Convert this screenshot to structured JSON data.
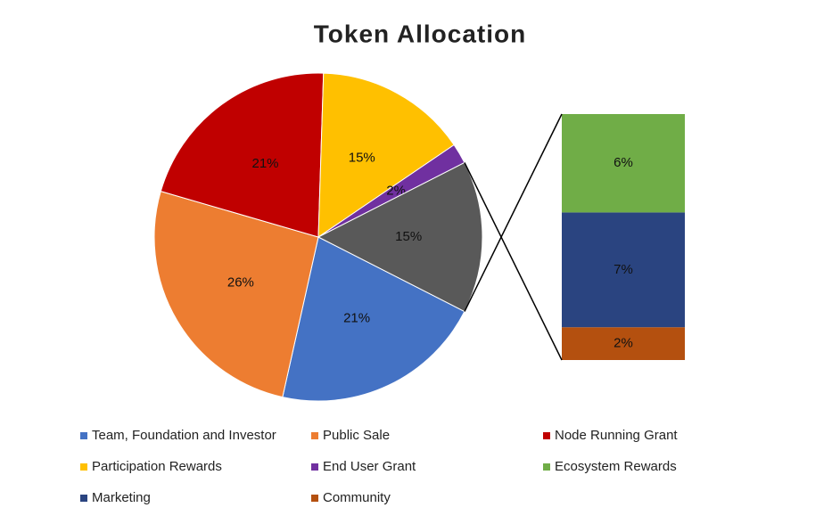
{
  "chart_data": {
    "type": "pie-of-bar",
    "title": "Token Allocation",
    "categories": [
      "Team, Foundation and Investor",
      "Public Sale",
      "Node Running Grant",
      "Participation Rewards",
      "End User Grant",
      null
    ],
    "values": [
      21,
      26,
      21,
      15,
      2,
      15
    ],
    "value_labels": [
      "21%",
      "26%",
      "21%",
      "15%",
      "2%",
      "15%"
    ],
    "colors": [
      "#4472c4",
      "#ed7d31",
      "#c00000",
      "#ffc000",
      "#7030a0",
      "#595959"
    ],
    "bar_categories": [
      "Ecosystem Rewards",
      "Marketing",
      "Community"
    ],
    "bar_values": [
      6,
      7,
      2
    ],
    "bar_value_labels": [
      "6%",
      "7%",
      "2%"
    ],
    "bar_colors": [
      "#70ad47",
      "#2a4480",
      "#b4500f"
    ]
  }
}
